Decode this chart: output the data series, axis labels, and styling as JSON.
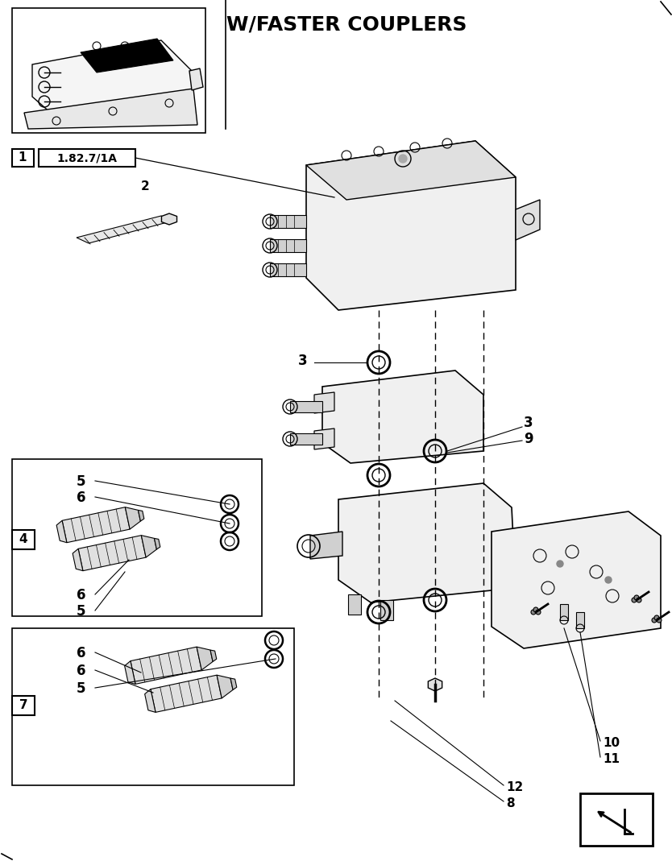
{
  "title": "W/FASTER COUPLERS",
  "title_fontsize": 18,
  "background_color": "#ffffff",
  "line_color": "#000000",
  "figsize": [
    8.34,
    10.69
  ],
  "dpi": 100
}
